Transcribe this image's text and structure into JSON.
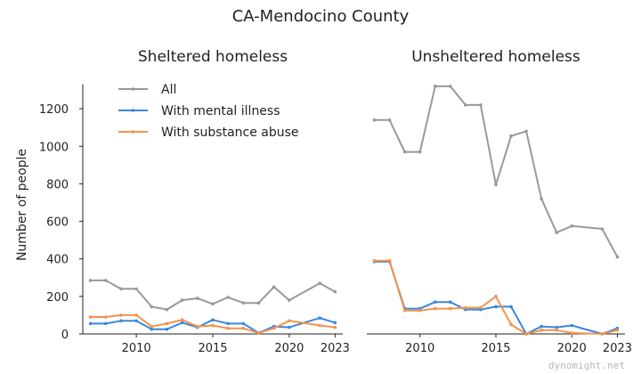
{
  "figure": {
    "title": "CA-Mendocino County",
    "ylabel": "Number of people",
    "watermark": "dynomight.net"
  },
  "colors": {
    "all": "#999999",
    "mental": "#3a86e0",
    "substance": "#f4924c",
    "axis": "#222222"
  },
  "chart_data": [
    {
      "type": "line",
      "title": "Sheltered homeless",
      "xlabel": "",
      "ylabel": "Number of people",
      "x": [
        2007,
        2008,
        2009,
        2010,
        2011,
        2012,
        2013,
        2014,
        2015,
        2016,
        2017,
        2018,
        2019,
        2020,
        2022,
        2023
      ],
      "xticks": [
        "2010",
        "2015",
        "2020",
        "2023"
      ],
      "yticks": [
        "0",
        "200",
        "400",
        "600",
        "800",
        "1000",
        "1200"
      ],
      "xlim": [
        2006.5,
        2023.5
      ],
      "ylim": [
        0,
        1400
      ],
      "legend": "top-left",
      "series": [
        {
          "name": "All",
          "color": "#999999",
          "values": [
            285,
            285,
            240,
            240,
            145,
            130,
            180,
            190,
            160,
            195,
            165,
            165,
            250,
            180,
            270,
            225
          ]
        },
        {
          "name": "With mental illness",
          "color": "#3a86e0",
          "values": [
            55,
            55,
            70,
            70,
            25,
            25,
            60,
            35,
            75,
            55,
            55,
            5,
            40,
            35,
            85,
            60
          ]
        },
        {
          "name": "With substance abuse",
          "color": "#f4924c",
          "values": [
            90,
            90,
            100,
            100,
            40,
            55,
            75,
            40,
            45,
            30,
            30,
            5,
            30,
            70,
            45,
            35
          ]
        }
      ]
    },
    {
      "type": "line",
      "title": "Unsheltered homeless",
      "xlabel": "",
      "ylabel": "",
      "x": [
        2007,
        2008,
        2009,
        2010,
        2011,
        2012,
        2013,
        2014,
        2015,
        2016,
        2017,
        2018,
        2019,
        2020,
        2022,
        2023
      ],
      "xticks": [
        "2010",
        "2015",
        "2020",
        "2023"
      ],
      "xlim": [
        2006.5,
        2023.5
      ],
      "ylim": [
        0,
        1400
      ],
      "series": [
        {
          "name": "All",
          "color": "#999999",
          "values": [
            1140,
            1140,
            970,
            970,
            1320,
            1320,
            1220,
            1220,
            795,
            1055,
            1080,
            720,
            540,
            575,
            560,
            410
          ]
        },
        {
          "name": "With mental illness",
          "color": "#3a86e0",
          "values": [
            385,
            385,
            135,
            135,
            170,
            170,
            130,
            130,
            145,
            145,
            0,
            40,
            35,
            45,
            0,
            30
          ]
        },
        {
          "name": "With substance abuse",
          "color": "#f4924c",
          "values": [
            390,
            390,
            125,
            125,
            135,
            135,
            140,
            140,
            200,
            50,
            0,
            20,
            20,
            5,
            0,
            20
          ]
        }
      ]
    }
  ]
}
